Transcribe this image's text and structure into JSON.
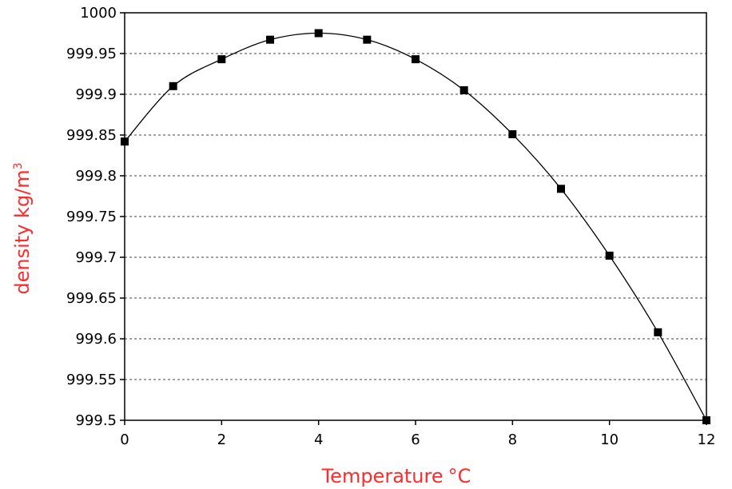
{
  "chart_data": {
    "type": "line",
    "xlabel": "Temperature",
    "xlabel_unit": "°C",
    "ylabel": "density kg/m",
    "ylabel_sup": "3",
    "xlim": [
      0,
      12
    ],
    "ylim": [
      999.5,
      1000
    ],
    "x_ticks": [
      "0",
      "2",
      "4",
      "6",
      "8",
      "10",
      "12"
    ],
    "y_ticks": [
      "1000",
      "999.95",
      "999.9",
      "999.85",
      "999.8",
      "999.75",
      "999.7",
      "999.65",
      "999.6",
      "999.55",
      "999.5"
    ],
    "grid": "horizontal dashed",
    "legend": "none",
    "colors": {
      "axis_title": "#ff2a2a",
      "series": "#000000"
    },
    "series": [
      {
        "x": [
          0,
          1,
          2,
          3,
          4,
          5,
          6,
          7,
          8,
          9,
          10,
          11,
          12
        ],
        "y": [
          999.842,
          999.91,
          999.943,
          999.967,
          999.975,
          999.967,
          999.943,
          999.905,
          999.851,
          999.784,
          999.702,
          999.608,
          999.5
        ]
      }
    ]
  }
}
